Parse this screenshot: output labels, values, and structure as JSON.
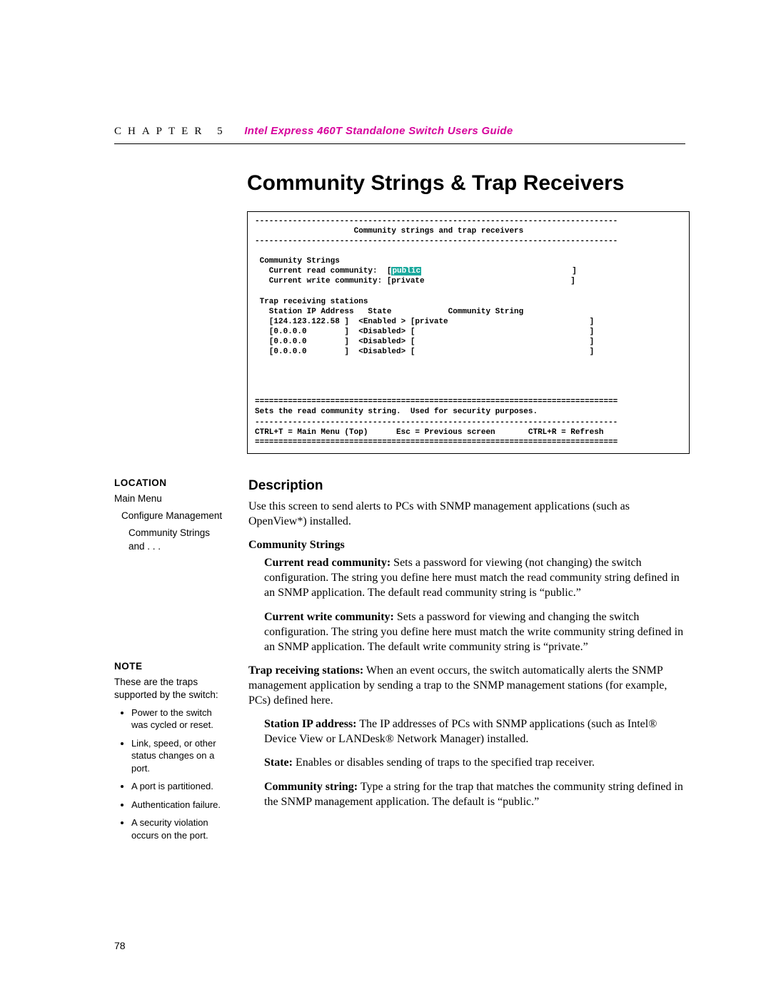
{
  "header": {
    "chapter": "CHAPTER 5",
    "guide": "Intel Express 460T Standalone Switch Users Guide"
  },
  "title": "Community Strings & Trap Receivers",
  "terminal": {
    "divider_dash": "-----------------------------------------------------------------------------",
    "title_line": "                     Community strings and trap receivers",
    "cs_header": " Community Strings",
    "read_prefix": "   Current read community:  [",
    "read_value": "public",
    "read_suffix": "                                ]",
    "write_line": "   Current write community: [private                               ]",
    "trap_header": " Trap receiving stations",
    "trap_cols": "   Station IP Address   State            Community String",
    "trap_row1": "   [124.123.122.58 ]  <Enabled > [private                              ]",
    "trap_row2": "   [0.0.0.0        ]  <Disabled> [                                     ]",
    "trap_row3": "   [0.0.0.0        ]  <Disabled> [                                     ]",
    "trap_row4": "   [0.0.0.0        ]  <Disabled> [                                     ]",
    "divider_eq": "=============================================================================",
    "help_line": "Sets the read community string.  Used for security purposes.",
    "footer_line": "CTRL+T = Main Menu (Top)      Esc = Previous screen       CTRL+R = Refresh"
  },
  "sidebar": {
    "location_h": "LOCATION",
    "loc1": "Main Menu",
    "loc2": "Configure Management",
    "loc3": "Community Strings and . . .",
    "note_h": "NOTE",
    "note_intro": "These are the traps supported by the switch:",
    "notes": [
      "Power to the switch was cycled or reset.",
      "Link, speed, or other status changes on a port.",
      "A port is partitioned.",
      "Authentication failure.",
      "A security violation occurs on the port."
    ]
  },
  "content": {
    "desc_h": "Description",
    "intro": "Use this screen to send alerts to PCs with SNMP management applications (such as OpenView*) installed.",
    "cs_h": "Community Strings",
    "read_lead": "Current read community:",
    "read_body": " Sets a password for viewing (not changing) the switch configuration. The string you define here must match the read community string defined in an SNMP application. The default read community string is “public.”",
    "write_lead": "Current write community:",
    "write_body": " Sets a password for viewing and changing the switch configuration. The string you define here must match the write community string defined in an SNMP application. The default write community string is “private.”",
    "trap_lead": "Trap receiving stations:",
    "trap_body": " When an event occurs, the switch automatically alerts the SNMP management application by sending a trap to the SNMP management stations (for example, PCs) defined here.",
    "station_lead": "Station IP address:",
    "station_body": " The IP addresses of PCs with SNMP applications (such as Intel® Device View or LANDesk® Network Manager) installed.",
    "state_lead": "State:",
    "state_body": " Enables or disables sending of traps to the specified trap receiver.",
    "comm_lead": "Community string:",
    "comm_body": " Type a string for the trap that matches the community string defined in the SNMP management application. The default is “public.”"
  },
  "page_number": "78"
}
